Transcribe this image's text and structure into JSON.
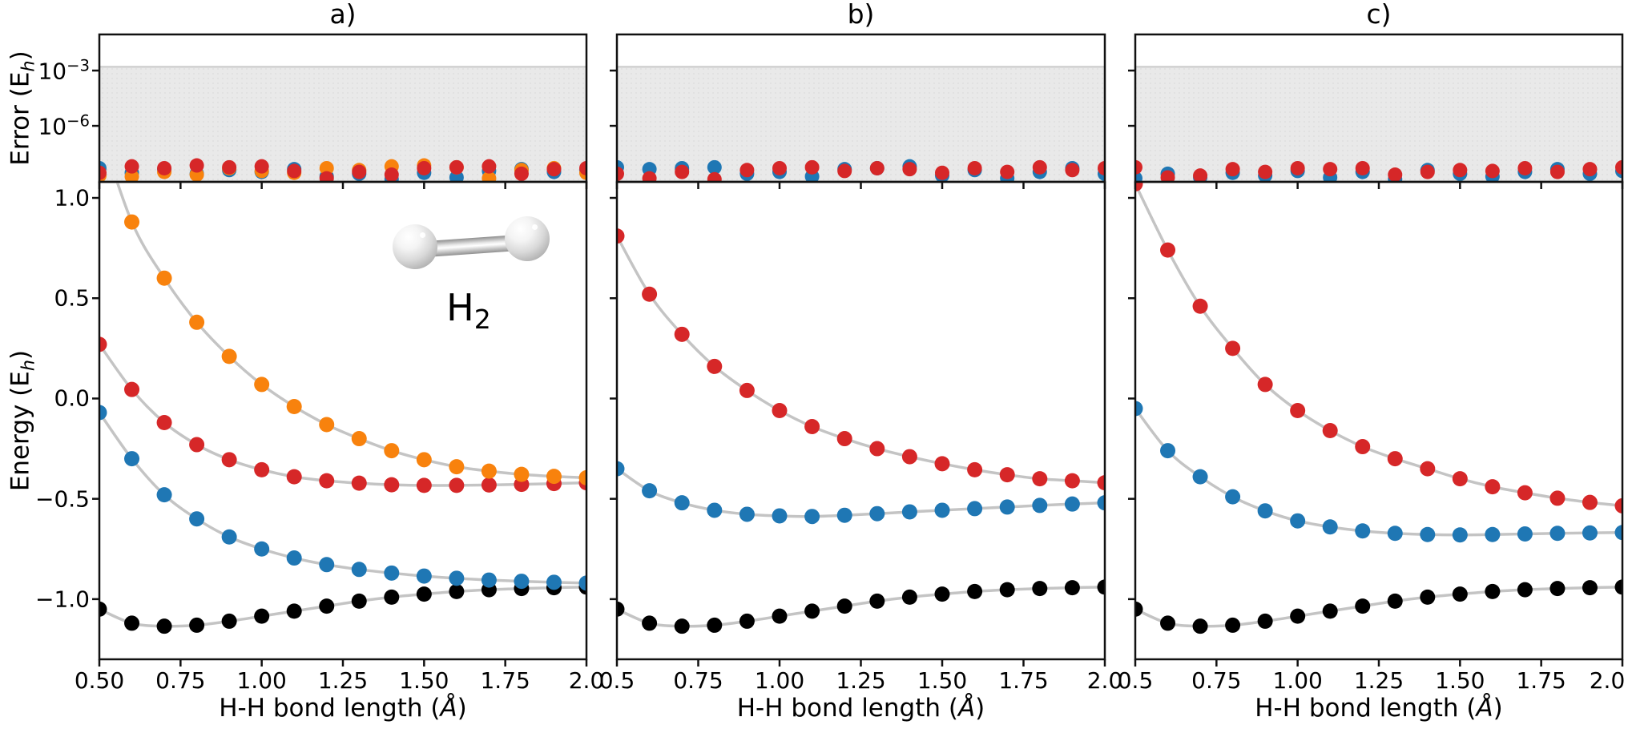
{
  "figure": {
    "ylabel_error": {
      "pre": "Error (E",
      "sub": "h",
      "post": ")"
    },
    "ylabel_energy": {
      "pre": "Energy (E",
      "sub": "h",
      "post": ")"
    },
    "xlabel": {
      "pre": "H-H bond length (",
      "unit": "Å",
      "post": ")"
    },
    "molecule": {
      "element": "H",
      "subscript": "2"
    },
    "colors": {
      "blue": "#1f77b4",
      "orange": "#f8820d",
      "red": "#d62728",
      "black": "#000000",
      "curve_line": "#c4c4c4",
      "shade_fill": "#e9e9e9",
      "shade_dot": "#dcdcdc",
      "shade_edge": "#c9c9c9",
      "spine": "#111111"
    }
  },
  "chart_data": {
    "type": "line+scatter, 3-panel with log-error subpanels",
    "x": [
      0.5,
      0.6,
      0.7,
      0.8,
      0.9,
      1.0,
      1.1,
      1.2,
      1.3,
      1.4,
      1.5,
      1.6,
      1.7,
      1.8,
      1.9,
      2.0
    ],
    "xlabel": "H-H bond length (Å)",
    "x_tick_values": [
      0.5,
      0.75,
      1.0,
      1.25,
      1.5,
      1.75,
      2.0
    ],
    "xlim": [
      0.5,
      2.0
    ],
    "energy_ylim": [
      -1.3,
      1.08
    ],
    "error_ylim_log10": [
      -9.04,
      -1.04
    ],
    "grid": false,
    "legend": "none",
    "panels": [
      {
        "id": "a",
        "title": "a)",
        "x_tick_labels": [
          "0.50",
          "0.75",
          "1.00",
          "1.25",
          "1.50",
          "1.75",
          "2.0"
        ],
        "error_plot": {
          "yscale": "log",
          "shaded_band_top": 0.0016,
          "ytick_exponents": [
            -3,
            -6
          ],
          "ytick_labels": [
            {
              "mant": "10",
              "exp": "−3"
            },
            {
              "mant": "10",
              "exp": "−6"
            }
          ],
          "series": [
            {
              "name": "blue",
              "color_key": "blue",
              "log10_error": [
                -8.3,
                -8.55,
                -8.35,
                -8.6,
                -8.4,
                -8.5,
                -8.35,
                -8.75,
                -8.6,
                -8.9,
                -8.55,
                -8.8,
                -8.45,
                -8.35,
                -8.5,
                -8.4
              ]
            },
            {
              "name": "orange",
              "color_key": "orange",
              "log10_error": [
                -8.7,
                -8.75,
                -8.5,
                -8.65,
                -8.3,
                -8.45,
                -8.55,
                -8.3,
                -8.4,
                -8.2,
                -8.15,
                -8.25,
                -8.85,
                -8.4,
                -8.3,
                -8.55
              ]
            },
            {
              "name": "red",
              "color_key": "red",
              "log10_error": [
                -8.55,
                -8.2,
                -8.3,
                -8.15,
                -8.25,
                -8.2,
                -8.45,
                -8.85,
                -8.5,
                -8.65,
                -8.3,
                -8.25,
                -8.2,
                -8.6,
                -8.35,
                -8.3
              ]
            }
          ]
        },
        "energy_plot": {
          "ytick_values": [
            1.0,
            0.5,
            0.0,
            -0.5,
            -1.0
          ],
          "ytick_labels": [
            "1.0",
            "0.5",
            "0.0",
            "−0.5",
            "−1.0"
          ],
          "series": [
            {
              "name": "black",
              "color_key": "black",
              "values": [
                -1.05,
                -1.12,
                -1.135,
                -1.13,
                -1.11,
                -1.085,
                -1.06,
                -1.035,
                -1.01,
                -0.99,
                -0.975,
                -0.962,
                -0.953,
                -0.947,
                -0.943,
                -0.94
              ]
            },
            {
              "name": "blue",
              "color_key": "blue",
              "values": [
                -0.07,
                -0.3,
                -0.48,
                -0.6,
                -0.69,
                -0.75,
                -0.795,
                -0.828,
                -0.852,
                -0.87,
                -0.885,
                -0.896,
                -0.905,
                -0.911,
                -0.916,
                -0.92
              ]
            },
            {
              "name": "red",
              "color_key": "red",
              "values": [
                0.27,
                0.045,
                -0.12,
                -0.23,
                -0.305,
                -0.355,
                -0.39,
                -0.41,
                -0.422,
                -0.43,
                -0.433,
                -0.433,
                -0.431,
                -0.428,
                -0.424,
                -0.42
              ]
            },
            {
              "name": "orange",
              "color_key": "orange",
              "values": [
                1.35,
                0.88,
                0.6,
                0.38,
                0.21,
                0.07,
                -0.04,
                -0.13,
                -0.2,
                -0.26,
                -0.305,
                -0.34,
                -0.362,
                -0.378,
                -0.388,
                -0.395
              ]
            }
          ]
        }
      },
      {
        "id": "b",
        "title": "b)",
        "x_tick_labels": [
          "0.5",
          "0.75",
          "1.00",
          "1.25",
          "1.50",
          "1.75",
          "2.0"
        ],
        "error_plot": {
          "yscale": "log",
          "shaded_band_top": 0.0016,
          "ytick_exponents": [
            -3,
            -6
          ],
          "ytick_labels": [],
          "series": [
            {
              "name": "blue",
              "color_key": "blue",
              "log10_error": [
                -8.25,
                -8.35,
                -8.3,
                -8.25,
                -8.6,
                -8.5,
                -8.75,
                -8.35,
                -8.3,
                -8.2,
                -8.7,
                -8.4,
                -8.85,
                -8.5,
                -8.3,
                -8.6
              ]
            },
            {
              "name": "red",
              "color_key": "red",
              "log10_error": [
                -8.6,
                -8.85,
                -8.5,
                -8.9,
                -8.4,
                -8.3,
                -8.25,
                -8.45,
                -8.3,
                -8.35,
                -8.55,
                -8.3,
                -8.5,
                -8.25,
                -8.4,
                -8.3
              ]
            }
          ]
        },
        "energy_plot": {
          "ytick_values": [
            1.0,
            0.5,
            0.0,
            -0.5,
            -1.0
          ],
          "ytick_labels": [],
          "series": [
            {
              "name": "black",
              "color_key": "black",
              "values": [
                -1.05,
                -1.12,
                -1.135,
                -1.13,
                -1.11,
                -1.085,
                -1.06,
                -1.035,
                -1.01,
                -0.99,
                -0.975,
                -0.962,
                -0.953,
                -0.947,
                -0.943,
                -0.94
              ]
            },
            {
              "name": "blue",
              "color_key": "blue",
              "values": [
                -0.35,
                -0.46,
                -0.52,
                -0.557,
                -0.577,
                -0.585,
                -0.588,
                -0.582,
                -0.574,
                -0.565,
                -0.557,
                -0.549,
                -0.541,
                -0.533,
                -0.526,
                -0.52
              ]
            },
            {
              "name": "red",
              "color_key": "red",
              "values": [
                0.81,
                0.52,
                0.32,
                0.16,
                0.04,
                -0.06,
                -0.14,
                -0.2,
                -0.25,
                -0.29,
                -0.325,
                -0.355,
                -0.38,
                -0.4,
                -0.41,
                -0.42
              ]
            }
          ]
        }
      },
      {
        "id": "c",
        "title": "c)",
        "x_tick_labels": [
          "0.5",
          "0.75",
          "1.00",
          "1.25",
          "1.50",
          "1.75",
          "2.0"
        ],
        "error_plot": {
          "yscale": "log",
          "shaded_band_top": 0.0016,
          "ytick_exponents": [
            -3,
            -6
          ],
          "ytick_labels": [],
          "series": [
            {
              "name": "blue",
              "color_key": "blue",
              "log10_error": [
                -8.85,
                -8.6,
                -8.8,
                -8.55,
                -8.7,
                -8.45,
                -8.8,
                -8.5,
                -8.9,
                -8.4,
                -8.6,
                -8.75,
                -8.5,
                -8.35,
                -8.6,
                -8.45
              ]
            },
            {
              "name": "red",
              "color_key": "red",
              "log10_error": [
                -8.25,
                -8.8,
                -8.7,
                -8.35,
                -8.5,
                -8.3,
                -8.35,
                -8.3,
                -8.65,
                -8.5,
                -8.4,
                -8.45,
                -8.3,
                -8.5,
                -8.35,
                -8.25
              ]
            }
          ]
        },
        "energy_plot": {
          "ytick_values": [
            1.0,
            0.5,
            0.0,
            -0.5,
            -1.0
          ],
          "ytick_labels": [],
          "series": [
            {
              "name": "black",
              "color_key": "black",
              "values": [
                -1.05,
                -1.12,
                -1.135,
                -1.13,
                -1.11,
                -1.085,
                -1.06,
                -1.035,
                -1.01,
                -0.99,
                -0.975,
                -0.962,
                -0.953,
                -0.947,
                -0.943,
                -0.94
              ]
            },
            {
              "name": "blue",
              "color_key": "blue",
              "values": [
                -0.05,
                -0.26,
                -0.39,
                -0.49,
                -0.56,
                -0.61,
                -0.64,
                -0.66,
                -0.672,
                -0.678,
                -0.68,
                -0.678,
                -0.675,
                -0.672,
                -0.67,
                -0.668
              ]
            },
            {
              "name": "red",
              "color_key": "red",
              "values": [
                1.07,
                0.74,
                0.46,
                0.25,
                0.07,
                -0.06,
                -0.16,
                -0.24,
                -0.3,
                -0.35,
                -0.4,
                -0.44,
                -0.47,
                -0.497,
                -0.518,
                -0.535
              ]
            }
          ]
        }
      }
    ]
  }
}
